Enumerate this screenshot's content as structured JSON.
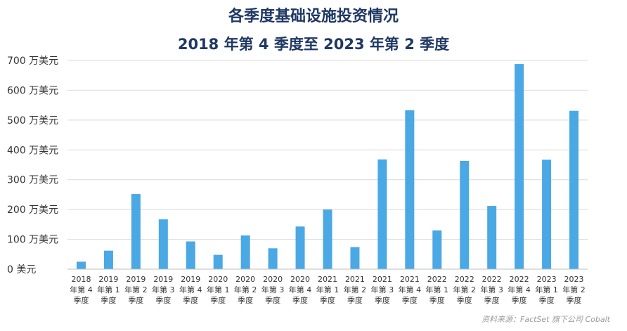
{
  "chart_data": {
    "type": "bar",
    "title": "各季度基础设施投资情况",
    "subtitle": "2018 年第 4 季度至 2023 年第 2 季度",
    "xlabel": "",
    "ylabel": "",
    "ylim": [
      0,
      700
    ],
    "yticks": [
      0,
      100,
      200,
      300,
      400,
      500,
      600,
      700
    ],
    "ytick_labels": [
      "0 美元",
      "100 万美元",
      "200 万美元",
      "300 万美元",
      "400 万美元",
      "500 万美元",
      "600 万美元",
      "700 万美元"
    ],
    "grid": true,
    "color": "#4aa8e4",
    "categories": [
      [
        "2018",
        "年第 4",
        "季度"
      ],
      [
        "2019",
        "年第 1",
        "季度"
      ],
      [
        "2019",
        "年第 2",
        "季度"
      ],
      [
        "2019",
        "年第 3",
        "季度"
      ],
      [
        "2019",
        "年第 4",
        "季度"
      ],
      [
        "2020",
        "年第 1",
        "季度"
      ],
      [
        "2020",
        "年第 2",
        "季度"
      ],
      [
        "2020",
        "年第 3",
        "季度"
      ],
      [
        "2020",
        "年第 4",
        "季度"
      ],
      [
        "2021",
        "年第 1",
        "季度"
      ],
      [
        "2021",
        "年第 2",
        "季度"
      ],
      [
        "2021",
        "年第 3",
        "季度"
      ],
      [
        "2021",
        "年第 4",
        "季度"
      ],
      [
        "2022",
        "年第 1",
        "季度"
      ],
      [
        "2022",
        "年第 2",
        "季度"
      ],
      [
        "2022",
        "年第 3",
        "季度"
      ],
      [
        "2022",
        "年第 4",
        "季度"
      ],
      [
        "2023",
        "年第 1",
        "季度"
      ],
      [
        "2023",
        "年第 2",
        "季度"
      ]
    ],
    "values": [
      25,
      62,
      252,
      167,
      93,
      48,
      113,
      70,
      143,
      200,
      74,
      368,
      533,
      130,
      363,
      212,
      688,
      367,
      531
    ],
    "source": "资料来源：FactSet 旗下公司 Cobalt"
  }
}
